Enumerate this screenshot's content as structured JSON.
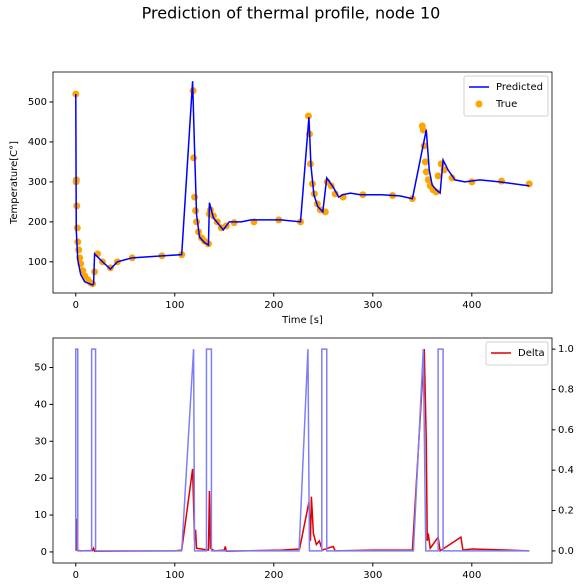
{
  "title": "Prediction of thermal profile, node 10",
  "chart_data": [
    {
      "type": "line",
      "xlabel": "Time [s]",
      "ylabel": "Temperature[C°]",
      "xlim": [
        -23,
        481
      ],
      "xticks": [
        0,
        100,
        200,
        300,
        400
      ],
      "ylim": [
        22,
        575
      ],
      "yticks": [
        100,
        200,
        300,
        400,
        500
      ],
      "legend": "upper right",
      "series": [
        {
          "name": "Predicted",
          "color": "#0000ff",
          "mark": "line",
          "x": [
            0,
            0.5,
            2,
            5,
            9,
            17,
            18,
            19,
            27,
            35,
            42,
            57,
            87,
            107,
            118,
            120,
            122,
            125,
            130,
            134,
            135,
            139,
            145,
            149,
            155,
            167,
            177,
            207,
            227,
            235.5,
            237.5,
            240.5,
            244.5,
            249.5,
            253.5,
            260.5,
            265.5,
            269.5,
            277.5,
            287.5,
            307.5,
            327.5,
            340,
            354,
            357,
            360,
            364,
            368,
            371,
            376,
            383,
            393,
            408,
            428,
            458
          ],
          "values": [
            520,
            180,
            105,
            68,
            50,
            42,
            45,
            120,
            100,
            82,
            100,
            110,
            115,
            118,
            552,
            380,
            218,
            162,
            148,
            142,
            248,
            210,
            192,
            180,
            200,
            200,
            205,
            205,
            200,
            462,
            342,
            268,
            238,
            225,
            310,
            285,
            262,
            268,
            272,
            268,
            268,
            265,
            258,
            430,
            330,
            292,
            280,
            272,
            355,
            330,
            305,
            300,
            305,
            300,
            290
          ]
        },
        {
          "name": "True",
          "color": "#ffa500",
          "mark": "scatter",
          "x": [
            0,
            0.3,
            0.6,
            1,
            1.5,
            2,
            3,
            4,
            5,
            7,
            9,
            12,
            15,
            17,
            19,
            22,
            27,
            35,
            42,
            57,
            87,
            107,
            118.5,
            119,
            120,
            121,
            122,
            124,
            127,
            130,
            134,
            135,
            136,
            139,
            143,
            147,
            152,
            160,
            180,
            205,
            227,
            235,
            236,
            237,
            239,
            241,
            244,
            247,
            252,
            254,
            258,
            262,
            270,
            290,
            320,
            340,
            350,
            351,
            352,
            353,
            354,
            356,
            358,
            361,
            364,
            366,
            369,
            372,
            380,
            400,
            430,
            458
          ],
          "values": [
            520,
            300,
            305,
            240,
            185,
            150,
            130,
            110,
            95,
            78,
            65,
            55,
            48,
            45,
            75,
            120,
            100,
            85,
            100,
            110,
            115,
            118,
            528,
            360,
            262,
            228,
            200,
            175,
            160,
            152,
            145,
            220,
            230,
            215,
            200,
            185,
            190,
            198,
            200,
            205,
            200,
            465,
            420,
            345,
            295,
            270,
            245,
            230,
            225,
            300,
            290,
            270,
            262,
            268,
            266,
            258,
            440,
            430,
            390,
            350,
            325,
            305,
            290,
            280,
            275,
            315,
            345,
            330,
            310,
            300,
            302,
            295
          ]
        }
      ]
    },
    {
      "type": "line",
      "xlim": [
        -23,
        481
      ],
      "xticks": [
        0,
        100,
        200,
        300,
        400
      ],
      "ylim": [
        -3,
        58
      ],
      "yticks": [
        0,
        10,
        20,
        30,
        40,
        50
      ],
      "y2lim": [
        -0.06,
        1.055
      ],
      "y2ticks": [
        {
          "value": 0,
          "label": "0.0"
        },
        {
          "value": 0.2,
          "label": "0.2"
        },
        {
          "value": 0.4,
          "label": "0.4"
        },
        {
          "value": 0.6,
          "label": "0.6"
        },
        {
          "value": 0.8,
          "label": "0.8"
        },
        {
          "value": 1,
          "label": "1.0"
        }
      ],
      "legend": "upper right",
      "series": [
        {
          "color": "#7f7ff5",
          "mark": "line",
          "axis": "y2",
          "x": [
            0,
            0,
            2,
            2,
            16,
            16,
            20,
            20,
            107,
            119,
            120,
            132,
            132,
            137,
            137,
            225.5,
            234.5,
            236,
            248.5,
            248.5,
            253.5,
            253.5,
            341,
            351,
            353.5,
            366,
            366,
            371,
            371,
            458
          ],
          "values": [
            0,
            1,
            1,
            0,
            0,
            1,
            1,
            0,
            0,
            1,
            0,
            0,
            1,
            1,
            0,
            0,
            1,
            0,
            0,
            1,
            1,
            0,
            0,
            1,
            0,
            0,
            1,
            1,
            0,
            0
          ]
        },
        {
          "name": "Delta",
          "color": "#e00000",
          "mark": "line",
          "x": [
            0,
            0.5,
            1,
            5,
            17,
            18,
            19,
            100,
            107,
            118,
            120,
            121,
            122,
            134,
            135,
            136,
            140,
            150,
            151,
            152,
            208,
            226,
            235.5,
            237,
            238,
            240,
            243,
            246,
            249,
            260,
            262,
            300,
            340,
            352,
            354,
            355,
            356,
            358,
            366,
            368,
            389,
            391,
            400,
            458
          ],
          "values": [
            0.5,
            9,
            0.5,
            0.3,
            0.4,
            1,
            0.2,
            0.3,
            0.5,
            22.5,
            3,
            6,
            1,
            0.5,
            16.5,
            1,
            0.3,
            0.5,
            1.5,
            0.2,
            0.5,
            0.8,
            13.5,
            3,
            15,
            5,
            2,
            3,
            0.5,
            1.5,
            0.3,
            0.5,
            0.5,
            55,
            30,
            3,
            5,
            1,
            4,
            0.3,
            4,
            0.5,
            0.8,
            0.3
          ]
        }
      ]
    }
  ]
}
